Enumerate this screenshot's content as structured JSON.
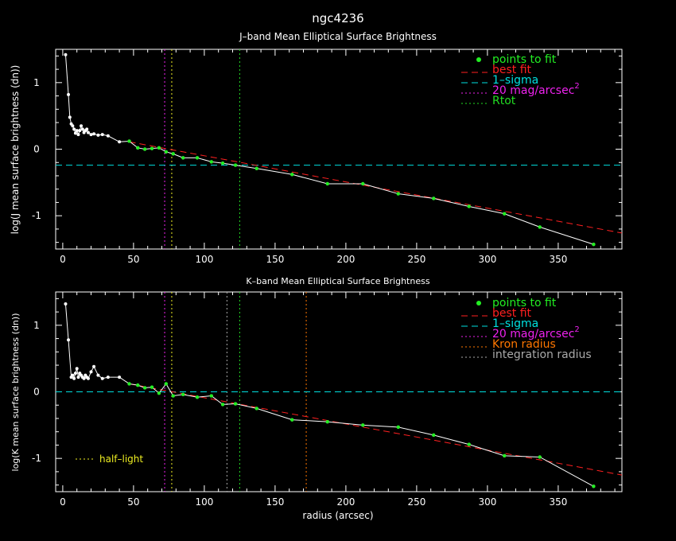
{
  "title": "ngc4236",
  "colors": {
    "background": "#000000",
    "axes": "#ffffff",
    "points_to_fit": "#22ee22",
    "best_fit": "#ff2020",
    "one_sigma": "#00e0e0",
    "mag20": "#ee22ee",
    "rtot": "#22dd22",
    "kron": "#ff7700",
    "integration": "#aaaaaa",
    "half_light": "#eeee22",
    "profile": "#ffffff"
  },
  "chart_data": [
    {
      "type": "line",
      "title": "J–band Mean Elliptical Surface Brightness",
      "ylabel": "log(J mean surface brightness (dn))",
      "xlabel": "",
      "xlim": [
        -5,
        395
      ],
      "ylim": [
        -1.5,
        1.5
      ],
      "xticks": [
        0,
        50,
        100,
        150,
        200,
        250,
        300,
        350
      ],
      "yticks": [
        -1,
        0,
        1
      ],
      "legend_position": "top-right",
      "legend": [
        {
          "key": "points_to_fit",
          "label": "points to fit",
          "style": "dot"
        },
        {
          "key": "best_fit",
          "label": "best fit",
          "style": "dashed"
        },
        {
          "key": "one_sigma",
          "label": "1–sigma",
          "style": "dashed"
        },
        {
          "key": "mag20",
          "label": "20 mag/arcsec",
          "sup": "2",
          "style": "dotted"
        },
        {
          "key": "rtot",
          "label": "Rtot",
          "style": "dotted"
        }
      ],
      "profile": {
        "x": [
          2,
          4,
          5,
          6,
          7,
          8,
          9,
          10,
          11,
          12,
          13,
          14,
          15,
          16,
          17,
          18,
          20,
          22,
          25,
          28,
          32,
          40,
          47,
          53,
          58,
          63,
          68,
          73,
          78,
          85,
          95,
          105,
          113,
          122,
          137,
          162,
          187,
          212,
          237,
          262,
          287,
          312,
          337,
          375
        ],
        "y": [
          1.42,
          0.82,
          0.48,
          0.38,
          0.35,
          0.3,
          0.24,
          0.28,
          0.22,
          0.28,
          0.35,
          0.3,
          0.25,
          0.28,
          0.3,
          0.25,
          0.22,
          0.23,
          0.21,
          0.22,
          0.2,
          0.11,
          0.12,
          0.02,
          0.0,
          0.01,
          0.02,
          -0.04,
          -0.07,
          -0.13,
          -0.13,
          -0.19,
          -0.21,
          -0.24,
          -0.29,
          -0.38,
          -0.52,
          -0.52,
          -0.67,
          -0.74,
          -0.86,
          -0.97,
          -1.17,
          -1.43
        ]
      },
      "fit_points": {
        "x": [
          47,
          53,
          58,
          63,
          68,
          73,
          78,
          85,
          95,
          105,
          113,
          122,
          137,
          162,
          187,
          212,
          237,
          262,
          287,
          312,
          337,
          375
        ],
        "y": [
          0.12,
          0.02,
          0.0,
          0.01,
          0.02,
          -0.04,
          -0.07,
          -0.13,
          -0.13,
          -0.19,
          -0.21,
          -0.24,
          -0.29,
          -0.38,
          -0.52,
          -0.52,
          -0.67,
          -0.74,
          -0.86,
          -0.97,
          -1.17,
          -1.43
        ]
      },
      "best_fit_line": {
        "x": [
          47,
          395
        ],
        "y": [
          0.11,
          -1.26
        ]
      },
      "one_sigma_level": -0.24,
      "vlines": [
        {
          "key": "mag20",
          "x": 72
        },
        {
          "key": "half_light",
          "x": 77
        },
        {
          "key": "rtot",
          "x": 125
        }
      ]
    },
    {
      "type": "line",
      "title": "K–band Mean Elliptical Surface Brightness",
      "ylabel": "log(K mean surface brightness (dn))",
      "xlabel": "radius (arcsec)",
      "xlim": [
        -5,
        395
      ],
      "ylim": [
        -1.5,
        1.5
      ],
      "xticks": [
        0,
        50,
        100,
        150,
        200,
        250,
        300,
        350
      ],
      "yticks": [
        -1,
        0,
        1
      ],
      "legend_position": "top-right",
      "legend": [
        {
          "key": "points_to_fit",
          "label": "points to fit",
          "style": "dot"
        },
        {
          "key": "best_fit",
          "label": "best fit",
          "style": "dashed"
        },
        {
          "key": "one_sigma",
          "label": "1–sigma",
          "style": "dashed"
        },
        {
          "key": "mag20",
          "label": "20 mag/arcsec",
          "sup": "2",
          "style": "dotted"
        },
        {
          "key": "kron",
          "label": "Kron radius",
          "style": "dotted"
        },
        {
          "key": "integration",
          "label": "integration radius",
          "style": "dotted"
        }
      ],
      "annotation": {
        "key": "half_light",
        "label": "half–light",
        "position": "bottom-left"
      },
      "profile": {
        "x": [
          2,
          4,
          6,
          7,
          8,
          9,
          10,
          11,
          12,
          13,
          14,
          15,
          16,
          17,
          18,
          20,
          22,
          25,
          28,
          32,
          40,
          47,
          53,
          58,
          63,
          68,
          73,
          78,
          85,
          95,
          105,
          113,
          122,
          137,
          162,
          187,
          212,
          237,
          262,
          287,
          312,
          337,
          375
        ],
        "y": [
          1.32,
          0.78,
          0.22,
          0.25,
          0.2,
          0.28,
          0.35,
          0.22,
          0.28,
          0.25,
          0.22,
          0.2,
          0.25,
          0.22,
          0.2,
          0.3,
          0.38,
          0.25,
          0.2,
          0.22,
          0.22,
          0.12,
          0.1,
          0.06,
          0.07,
          -0.02,
          0.12,
          -0.06,
          -0.04,
          -0.08,
          -0.06,
          -0.19,
          -0.18,
          -0.25,
          -0.42,
          -0.45,
          -0.5,
          -0.53,
          -0.65,
          -0.79,
          -0.96,
          -0.98,
          -1.42
        ]
      },
      "fit_points": {
        "x": [
          47,
          53,
          58,
          63,
          68,
          73,
          78,
          85,
          95,
          105,
          113,
          122,
          137,
          162,
          187,
          212,
          237,
          262,
          287,
          312,
          337,
          375
        ],
        "y": [
          0.12,
          0.1,
          0.06,
          0.07,
          -0.02,
          0.12,
          -0.06,
          -0.04,
          -0.08,
          -0.06,
          -0.19,
          -0.18,
          -0.25,
          -0.42,
          -0.45,
          -0.5,
          -0.53,
          -0.65,
          -0.79,
          -0.96,
          -0.98,
          -1.42
        ]
      },
      "best_fit_line": {
        "x": [
          47,
          395
        ],
        "y": [
          0.12,
          -1.25
        ]
      },
      "one_sigma_level": 0.0,
      "vlines": [
        {
          "key": "mag20",
          "x": 72
        },
        {
          "key": "half_light",
          "x": 77
        },
        {
          "key": "integration",
          "x": 116
        },
        {
          "key": "rtot",
          "x": 125
        },
        {
          "key": "kron",
          "x": 172
        }
      ]
    }
  ]
}
